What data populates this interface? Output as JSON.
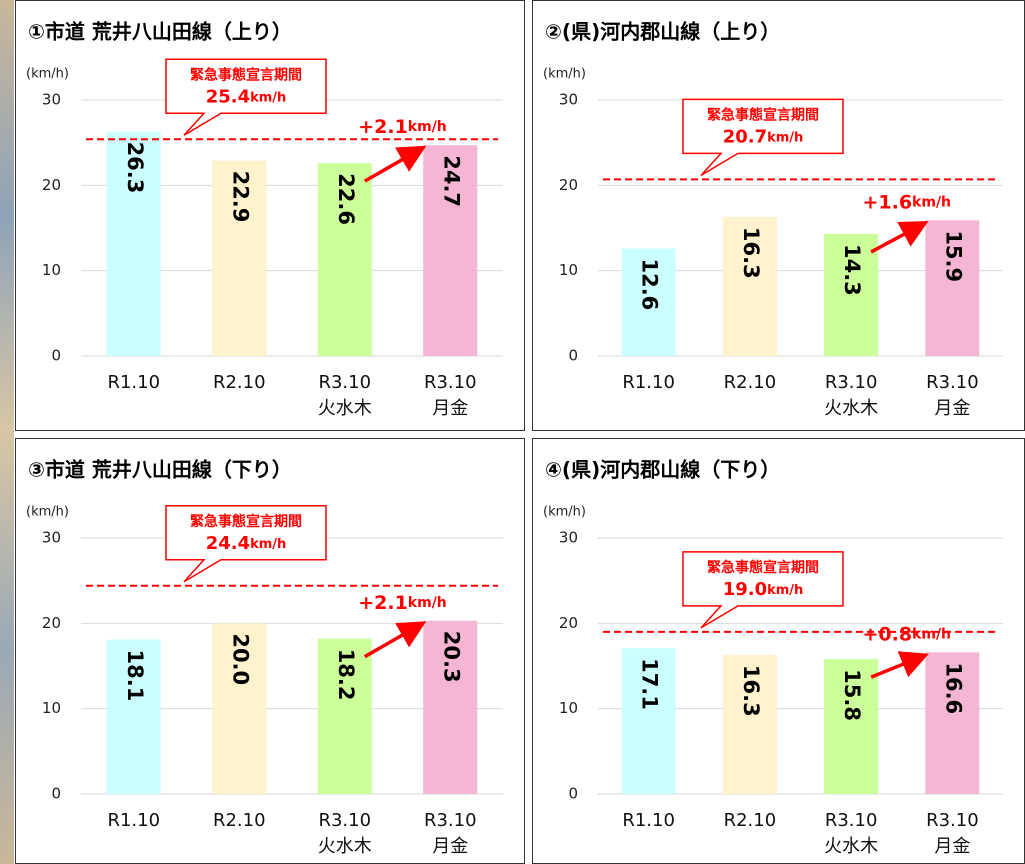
{
  "chart_data": [
    {
      "type": "bar",
      "title": "①市道 荒井八山田線（上り）",
      "y_label": "(km/h)",
      "categories": [
        [
          "R1.10"
        ],
        [
          "R2.10"
        ],
        [
          "R3.10",
          "火水木"
        ],
        [
          "R3.10",
          "月金"
        ]
      ],
      "values": [
        26.3,
        22.9,
        22.6,
        24.7
      ],
      "value_labels": [
        "26.3",
        "22.9",
        "22.6",
        "24.7"
      ],
      "colors": [
        "#ccffff",
        "#fff2cc",
        "#ccff99",
        "#f4b6d2"
      ],
      "ylim": [
        0,
        30
      ],
      "yticks": [
        0,
        10,
        20,
        30
      ],
      "grid": true,
      "reference_line": {
        "label": "緊急事態宣言期間",
        "value": 25.4,
        "value_label": "25.4",
        "unit": "km/h",
        "color": "#ff0000"
      },
      "annotation": {
        "text": "+2.1",
        "unit": "km/h",
        "color": "#ff0000"
      }
    },
    {
      "type": "bar",
      "title": "②(県)河内郡山線（上り）",
      "y_label": "(km/h)",
      "categories": [
        [
          "R1.10"
        ],
        [
          "R2.10"
        ],
        [
          "R3.10",
          "火水木"
        ],
        [
          "R3.10",
          "月金"
        ]
      ],
      "values": [
        12.6,
        16.3,
        14.3,
        15.9
      ],
      "value_labels": [
        "12.6",
        "16.3",
        "14.3",
        "15.9"
      ],
      "colors": [
        "#ccffff",
        "#fff2cc",
        "#ccff99",
        "#f4b6d2"
      ],
      "ylim": [
        0,
        30
      ],
      "yticks": [
        0,
        10,
        20,
        30
      ],
      "grid": true,
      "reference_line": {
        "label": "緊急事態宣言期間",
        "value": 20.7,
        "value_label": "20.7",
        "unit": "km/h",
        "color": "#ff0000"
      },
      "annotation": {
        "text": "+1.6",
        "unit": "km/h",
        "color": "#ff0000"
      }
    },
    {
      "type": "bar",
      "title": "③市道 荒井八山田線（下り）",
      "y_label": "(km/h)",
      "categories": [
        [
          "R1.10"
        ],
        [
          "R2.10"
        ],
        [
          "R3.10",
          "火水木"
        ],
        [
          "R3.10",
          "月金"
        ]
      ],
      "values": [
        18.1,
        20.0,
        18.2,
        20.3
      ],
      "value_labels": [
        "18.1",
        "20.0",
        "18.2",
        "20.3"
      ],
      "colors": [
        "#ccffff",
        "#fff2cc",
        "#ccff99",
        "#f4b6d2"
      ],
      "ylim": [
        0,
        30
      ],
      "yticks": [
        0,
        10,
        20,
        30
      ],
      "grid": true,
      "reference_line": {
        "label": "緊急事態宣言期間",
        "value": 24.4,
        "value_label": "24.4",
        "unit": "km/h",
        "color": "#ff0000"
      },
      "annotation": {
        "text": "+2.1",
        "unit": "km/h",
        "color": "#ff0000"
      }
    },
    {
      "type": "bar",
      "title": "④(県)河内郡山線（下り）",
      "y_label": "(km/h)",
      "categories": [
        [
          "R1.10"
        ],
        [
          "R2.10"
        ],
        [
          "R3.10",
          "火水木"
        ],
        [
          "R3.10",
          "月金"
        ]
      ],
      "values": [
        17.1,
        16.3,
        15.8,
        16.6
      ],
      "value_labels": [
        "17.1",
        "16.3",
        "15.8",
        "16.6"
      ],
      "colors": [
        "#ccffff",
        "#fff2cc",
        "#ccff99",
        "#f4b6d2"
      ],
      "ylim": [
        0,
        30
      ],
      "yticks": [
        0,
        10,
        20,
        30
      ],
      "grid": true,
      "reference_line": {
        "label": "緊急事態宣言期間",
        "value": 19.0,
        "value_label": "19.0",
        "unit": "km/h",
        "color": "#ff0000"
      },
      "annotation": {
        "text": "+0.8",
        "unit": "km/h",
        "color": "#ff0000"
      }
    }
  ]
}
